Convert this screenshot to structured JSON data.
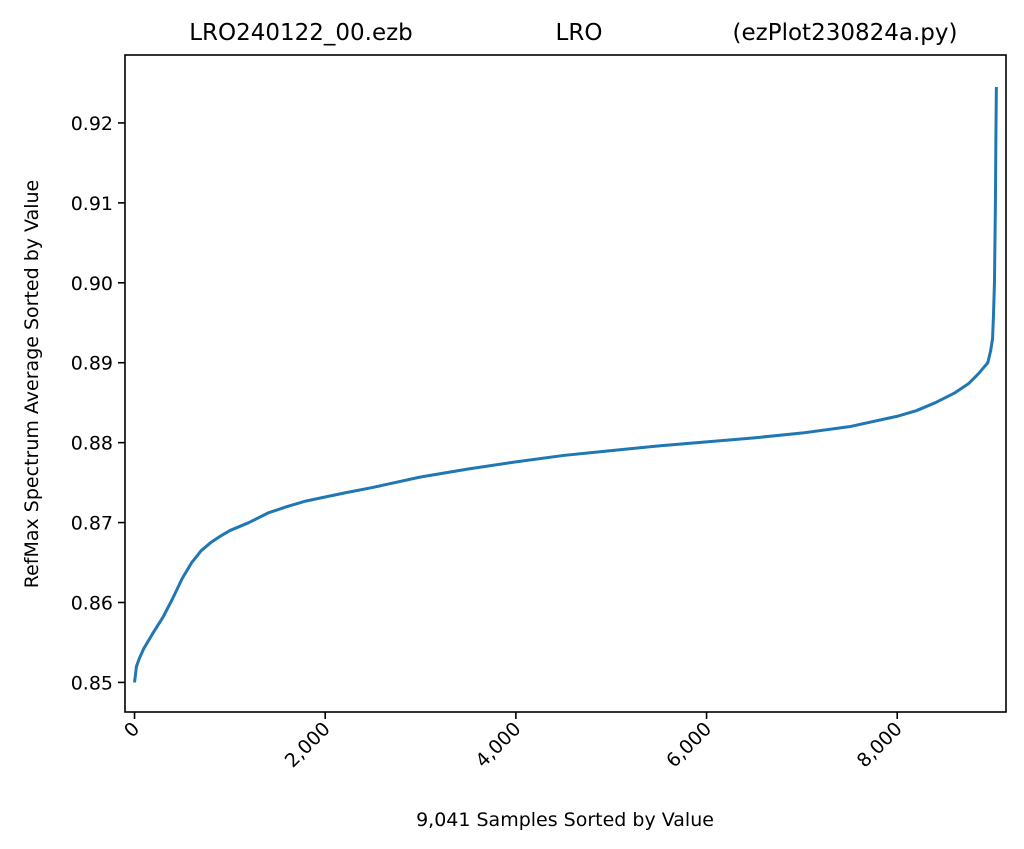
{
  "chart_data": {
    "type": "line",
    "title_parts": {
      "left": "LRO240122_00.ezb",
      "center": "LRO",
      "right": "(ezPlot230824a.py)"
    },
    "xlabel": "9,041 Samples Sorted by Value",
    "ylabel": "RefMax Spectrum Average Sorted by Value",
    "xlim": [
      -100,
      9141
    ],
    "ylim": [
      0.8463,
      0.9285
    ],
    "x_ticks": [
      0,
      2000,
      4000,
      6000,
      8000
    ],
    "x_tick_labels": [
      "0",
      "2,000",
      "4,000",
      "6,000",
      "8,000"
    ],
    "y_ticks": [
      0.85,
      0.86,
      0.87,
      0.88,
      0.89,
      0.9,
      0.91,
      0.92
    ],
    "y_tick_labels": [
      "0.85",
      "0.86",
      "0.87",
      "0.88",
      "0.89",
      "0.90",
      "0.91",
      "0.92"
    ],
    "grid": false,
    "color": "#1f77b4",
    "series": [
      {
        "x": [
          0,
          20,
          50,
          100,
          200,
          300,
          400,
          500,
          600,
          700,
          800,
          900,
          1000,
          1200,
          1400,
          1600,
          1800,
          2000,
          2200,
          2500,
          3000,
          3500,
          4000,
          4500,
          5000,
          5500,
          6000,
          6500,
          7000,
          7500,
          8000,
          8200,
          8400,
          8600,
          8750,
          8850,
          8900,
          8950,
          8980,
          9000,
          9010,
          9020,
          9030,
          9035,
          9040
        ],
        "y": [
          0.85,
          0.852,
          0.853,
          0.8543,
          0.8563,
          0.8582,
          0.8605,
          0.863,
          0.865,
          0.8665,
          0.8675,
          0.8683,
          0.869,
          0.87,
          0.8712,
          0.872,
          0.8727,
          0.8732,
          0.8737,
          0.8744,
          0.8757,
          0.8767,
          0.8776,
          0.8784,
          0.879,
          0.8796,
          0.8801,
          0.8806,
          0.8812,
          0.882,
          0.8833,
          0.884,
          0.885,
          0.8862,
          0.8874,
          0.8886,
          0.8893,
          0.89,
          0.8915,
          0.893,
          0.896,
          0.9,
          0.91,
          0.918,
          0.9245
        ]
      }
    ]
  }
}
